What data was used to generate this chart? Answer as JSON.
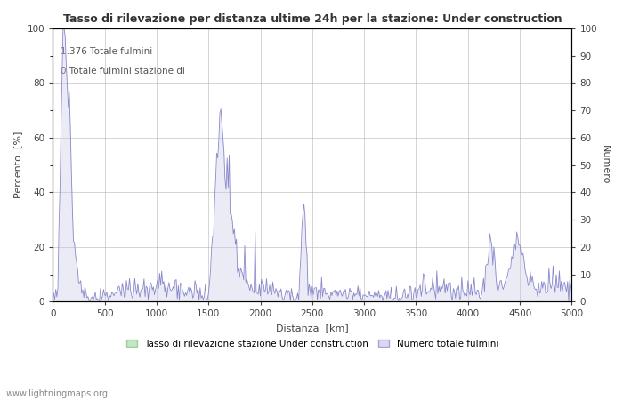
{
  "title": "Tasso di rilevazione per distanza ultime 24h per la stazione: Under construction",
  "annotation_line1": "1.376 Totale fulmini",
  "annotation_line2": "0 Totale fulmini stazione di",
  "xlabel": "Distanza  [km]",
  "ylabel_left": "Percento  [%]",
  "ylabel_right": "Numero",
  "xlim": [
    0,
    5000
  ],
  "ylim_left": [
    0,
    100
  ],
  "ylim_right": [
    0,
    100
  ],
  "xticks": [
    0,
    500,
    1000,
    1500,
    2000,
    2500,
    3000,
    3500,
    4000,
    4500,
    5000
  ],
  "yticks_left": [
    0,
    20,
    40,
    60,
    80,
    100
  ],
  "yticks_right": [
    0,
    10,
    20,
    30,
    40,
    50,
    60,
    70,
    80,
    90,
    100
  ],
  "legend_label_green": "Tasso di rilevazione stazione Under construction",
  "legend_label_blue": "Numero totale fulmini",
  "watermark": "www.lightningmaps.org",
  "background_color": "#ffffff",
  "plot_bg_color": "#ffffff",
  "grid_color": "#aaaaaa",
  "line_color_blue": "#8888cc",
  "fill_color_blue": "#c8c8e8",
  "fill_color_green": "#aaddaa",
  "title_color": "#333333",
  "axis_color": "#444444"
}
